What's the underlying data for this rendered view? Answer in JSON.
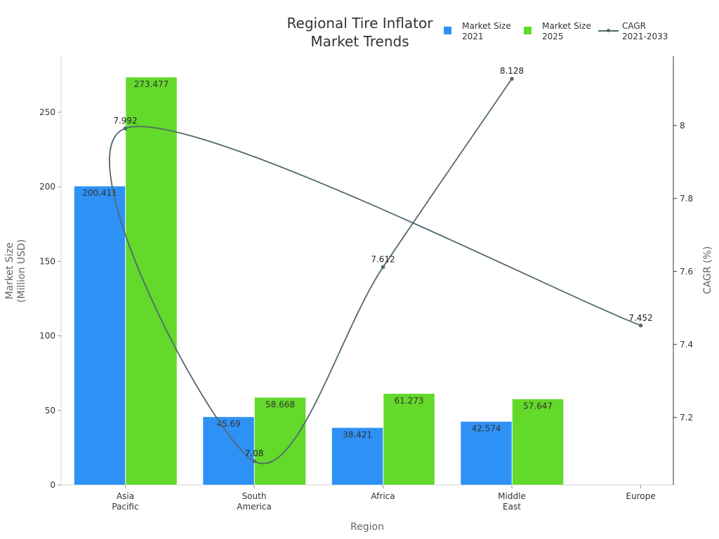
{
  "chart_data": {
    "type": "bar+line",
    "title": "Regional Tire Inflator Market Trends",
    "title_lines": [
      "Regional Tire Inflator",
      "Market Trends"
    ],
    "xlabel": "Region",
    "ylabel_lines": [
      "Market Size",
      "(Million USD)"
    ],
    "y2label": "CAGR (%)",
    "categories": [
      [
        "Asia",
        "Pacific"
      ],
      [
        "South",
        "America"
      ],
      [
        "Africa"
      ],
      [
        "Middle",
        "East"
      ],
      [
        "Europe"
      ]
    ],
    "category_names": [
      "Asia Pacific",
      "South America",
      "Africa",
      "Middle East",
      "Europe"
    ],
    "ylim": [
      0,
      287.6
    ],
    "yticks": [
      0,
      50,
      100,
      150,
      200,
      250
    ],
    "y2lim": [
      7.015,
      8.19
    ],
    "y2ticks": [
      7.2,
      7.4,
      7.6,
      7.8,
      8
    ],
    "grid": false,
    "legend_placement": "top-right",
    "series": [
      {
        "name": "Market Size 2021",
        "legend_lines": [
          "Market Size",
          "2021"
        ],
        "type": "bar",
        "axis": "left",
        "color": "#2e91f5",
        "values": [
          200.411,
          45.69,
          38.421,
          42.574,
          null
        ],
        "labels": [
          "200.411",
          "45.69",
          "38.421",
          "42.574",
          ""
        ]
      },
      {
        "name": "Market Size 2025",
        "legend_lines": [
          "Market Size",
          "2025"
        ],
        "type": "bar",
        "axis": "left",
        "color": "#63d92a",
        "values": [
          273.477,
          58.668,
          61.273,
          57.647,
          null
        ],
        "labels": [
          "273.477",
          "58.668",
          "61.273",
          "57.647",
          ""
        ]
      },
      {
        "name": "CAGR 2021-2033",
        "legend_lines": [
          "CAGR",
          "2021-2033"
        ],
        "type": "line",
        "axis": "right",
        "color": "#516a6f",
        "order": [
          "Europe",
          "Asia Pacific",
          "South America",
          "Africa",
          "Middle East"
        ],
        "values": [
          7.992,
          7.08,
          7.612,
          8.128,
          7.452
        ],
        "labels": [
          "7.992",
          "7.08",
          "7.612",
          "8.128",
          "7.452"
        ]
      }
    ]
  }
}
